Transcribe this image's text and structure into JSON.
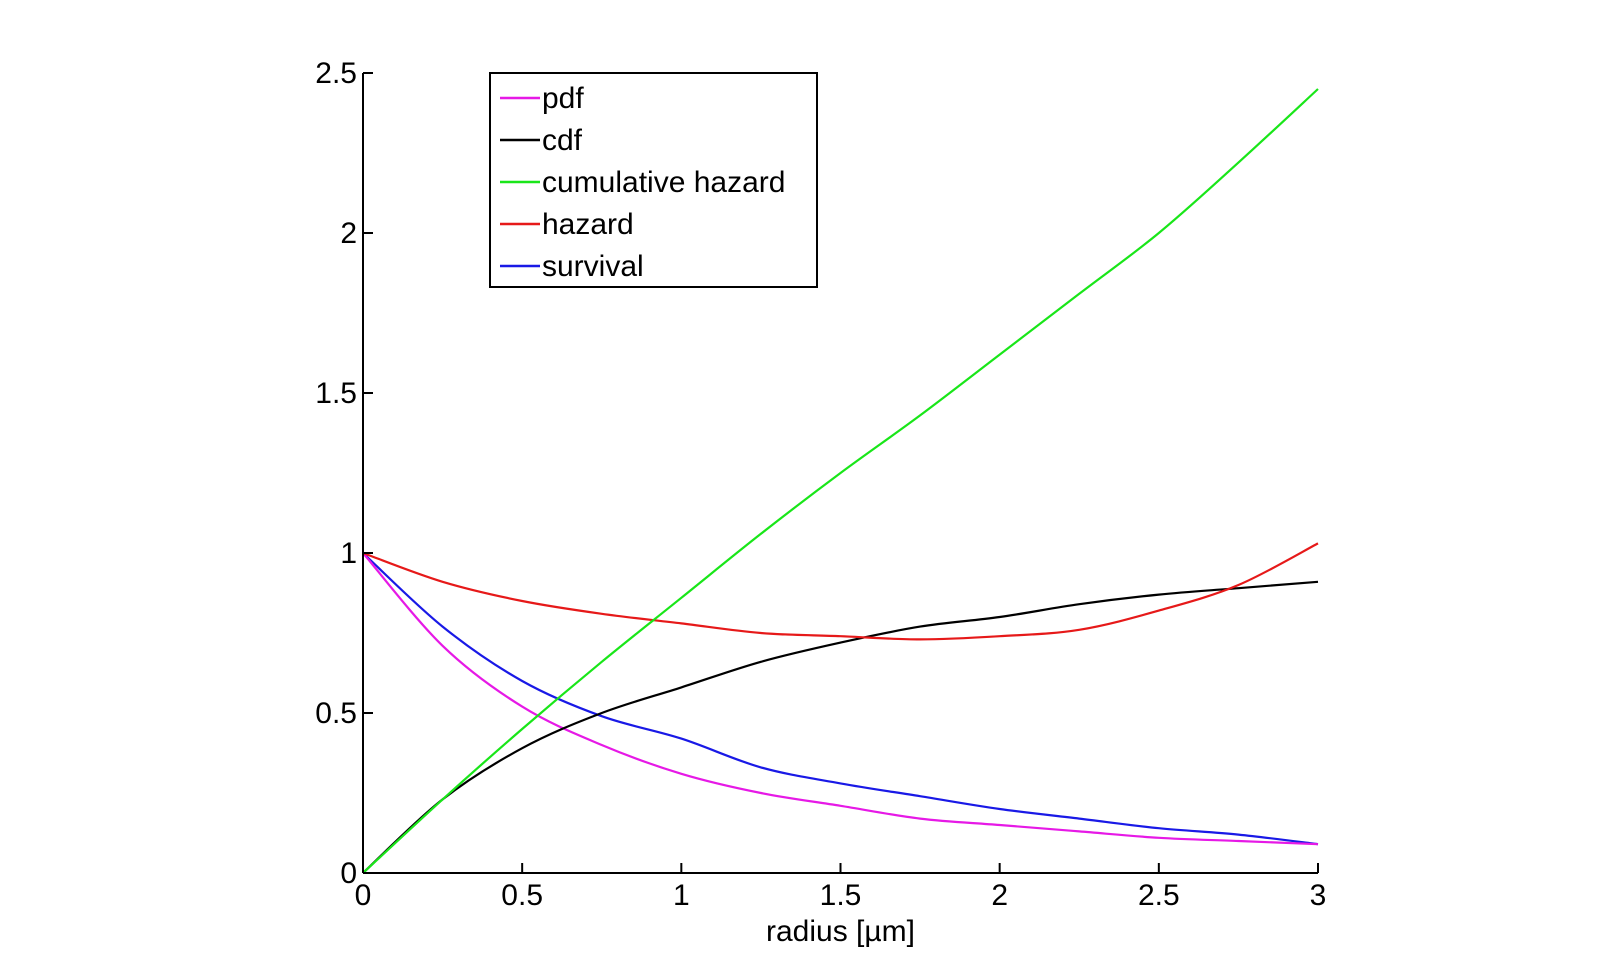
{
  "chart_data": {
    "type": "line",
    "title": "",
    "xlabel": "radius [µm]",
    "ylabel": "",
    "xlim": [
      0,
      3
    ],
    "ylim": [
      0,
      2.5
    ],
    "x_ticks": [
      "0",
      "0.5",
      "1",
      "1.5",
      "2",
      "2.5",
      "3"
    ],
    "y_ticks": [
      "0",
      "0.5",
      "1",
      "1.5",
      "2",
      "2.5"
    ],
    "grid": false,
    "legend_position": "top-left",
    "x": [
      0,
      0.25,
      0.5,
      0.75,
      1,
      1.25,
      1.5,
      1.75,
      2,
      2.25,
      2.5,
      2.75,
      3
    ],
    "series": [
      {
        "name": "pdf",
        "color": "#e619e6",
        "values": [
          1.0,
          0.71,
          0.52,
          0.4,
          0.31,
          0.25,
          0.21,
          0.17,
          0.15,
          0.13,
          0.11,
          0.1,
          0.09
        ]
      },
      {
        "name": "cdf",
        "color": "#000000",
        "values": [
          0.0,
          0.23,
          0.39,
          0.5,
          0.58,
          0.66,
          0.72,
          0.77,
          0.8,
          0.84,
          0.87,
          0.89,
          0.91
        ]
      },
      {
        "name": "cumulative hazard",
        "color": "#19e619",
        "values": [
          0.0,
          0.23,
          0.45,
          0.66,
          0.86,
          1.06,
          1.25,
          1.43,
          1.62,
          1.81,
          2.0,
          2.22,
          2.45
        ]
      },
      {
        "name": "hazard",
        "color": "#e61919",
        "values": [
          1.0,
          0.91,
          0.85,
          0.81,
          0.78,
          0.75,
          0.74,
          0.73,
          0.74,
          0.76,
          0.82,
          0.9,
          1.03
        ]
      },
      {
        "name": "survival",
        "color": "#1919e6",
        "values": [
          1.0,
          0.77,
          0.6,
          0.49,
          0.42,
          0.33,
          0.28,
          0.24,
          0.2,
          0.17,
          0.14,
          0.12,
          0.09
        ]
      }
    ]
  }
}
